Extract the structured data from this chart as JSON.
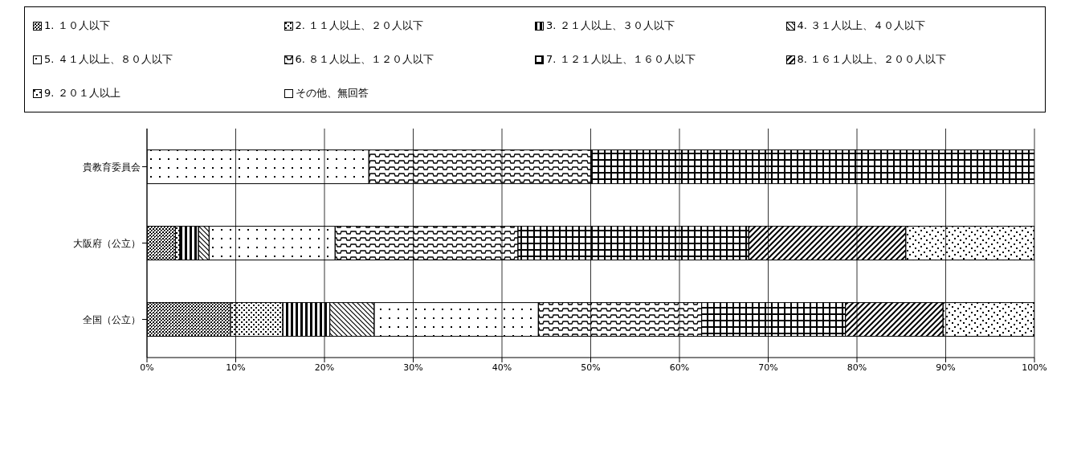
{
  "chart_data": {
    "type": "bar",
    "orientation": "horizontal",
    "stacked": true,
    "categories": [
      "貴教育委員会",
      "大阪府（公立）",
      "全国（公立）"
    ],
    "series": [
      {
        "name": "1. １０人以下",
        "color": "#000000",
        "values": [
          0,
          3.2,
          9.4
        ]
      },
      {
        "name": "2. １１人以上、２０人以下",
        "color": "#000000",
        "values": [
          0,
          0.5,
          5.9
        ]
      },
      {
        "name": "3. ２１人以上、３０人以下",
        "color": "#000000",
        "values": [
          0,
          2.1,
          5.3
        ]
      },
      {
        "name": "4. ３１人以上、４０人以下",
        "color": "#000000",
        "values": [
          0,
          1.2,
          5.0
        ]
      },
      {
        "name": "5. ４１人以上、８０人以下",
        "color": "#000000",
        "values": [
          25,
          14.2,
          18.5
        ]
      },
      {
        "name": "6. ８１人以上、１２０人以下",
        "color": "#000000",
        "values": [
          25,
          20.6,
          18.4
        ]
      },
      {
        "name": "7. １２１人以上、１６０人以下",
        "color": "#000000",
        "values": [
          50,
          26.0,
          16.2
        ]
      },
      {
        "name": "8. １６１人以上、２００人以下",
        "color": "#000000",
        "values": [
          0,
          17.7,
          11.0
        ]
      },
      {
        "name": "9. ２０１人以上",
        "color": "#000000",
        "values": [
          0,
          14.5,
          10.3
        ]
      },
      {
        "name": "その他、無回答",
        "color": "#000000",
        "values": [
          0,
          0,
          0
        ]
      }
    ],
    "xlim": [
      0,
      100
    ],
    "xticks": [
      {
        "value": 0,
        "label": "0%"
      },
      {
        "value": 10,
        "label": "10%"
      },
      {
        "value": 20,
        "label": "20%"
      },
      {
        "value": 30,
        "label": "30%"
      },
      {
        "value": 40,
        "label": "40%"
      },
      {
        "value": 50,
        "label": "50%"
      },
      {
        "value": 60,
        "label": "60%"
      },
      {
        "value": 70,
        "label": "70%"
      },
      {
        "value": 80,
        "label": "80%"
      },
      {
        "value": 90,
        "label": "90%"
      },
      {
        "value": 100,
        "label": "100%"
      }
    ],
    "grid": "x",
    "legend": "top"
  }
}
